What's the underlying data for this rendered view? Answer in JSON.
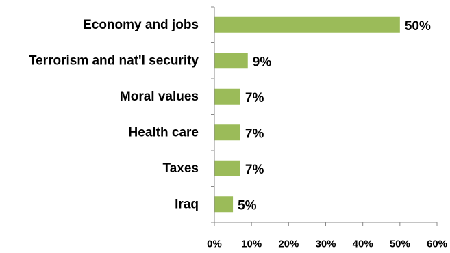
{
  "chart_data": {
    "type": "bar",
    "orientation": "horizontal",
    "categories": [
      "Economy and jobs",
      "Terrorism and nat'l security",
      "Moral values",
      "Health care",
      "Taxes",
      "Iraq"
    ],
    "values": [
      50,
      9,
      7,
      7,
      7,
      5
    ],
    "value_labels": [
      "50%",
      "9%",
      "7%",
      "7%",
      "7%",
      "5%"
    ],
    "xlim": [
      0,
      60
    ],
    "x_ticks": [
      0,
      10,
      20,
      30,
      40,
      50,
      60
    ],
    "x_tick_labels": [
      "0%",
      "10%",
      "20%",
      "30%",
      "40%",
      "50%",
      "60%"
    ],
    "title": "",
    "xlabel": "",
    "ylabel": "",
    "grid": false,
    "legend": "none",
    "bar_color": "#9bbb59"
  }
}
